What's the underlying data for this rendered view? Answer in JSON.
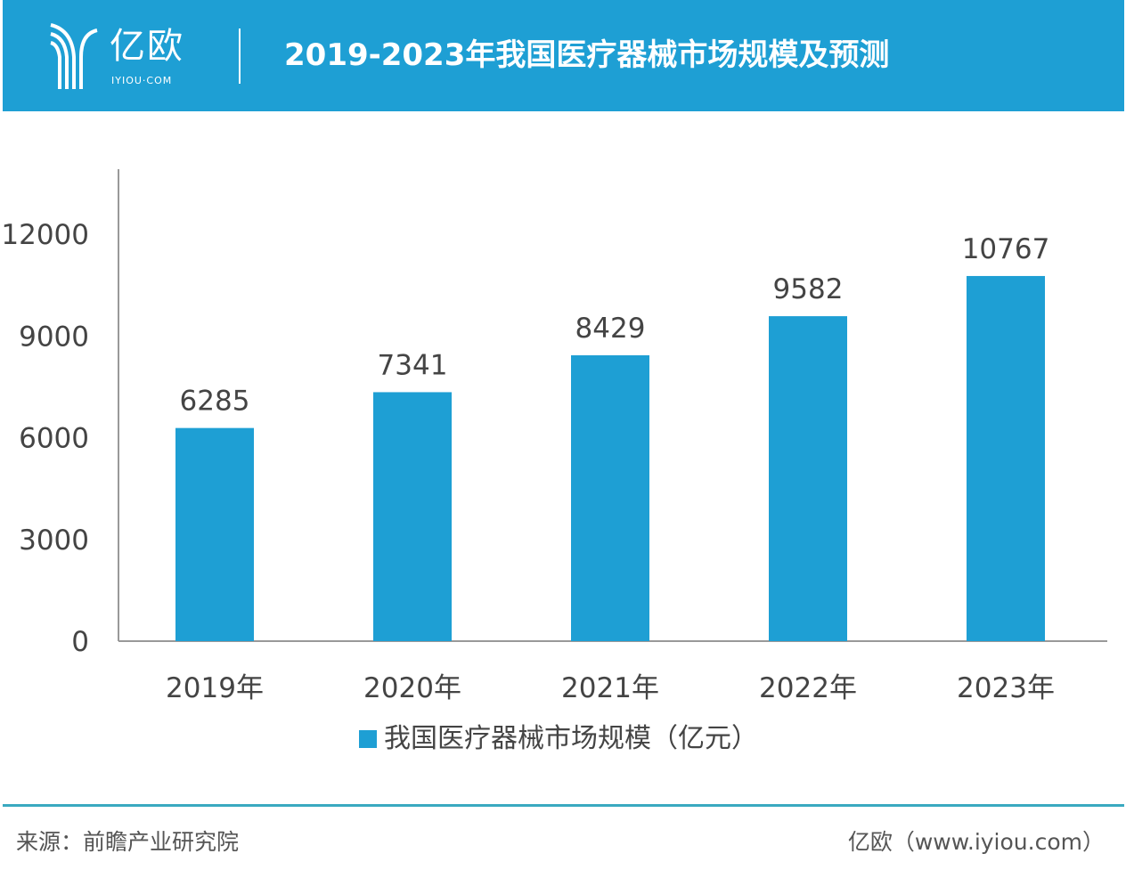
{
  "header": {
    "logo_cn": "亿欧",
    "logo_en": "IYIOU·COM",
    "title": "2019-2023年我国医疗器械市场规模及预测"
  },
  "chart_data": {
    "type": "bar",
    "title": "2019-2023年我国医疗器械市场规模及预测",
    "categories": [
      "2019年",
      "2020年",
      "2021年",
      "2022年",
      "2023年"
    ],
    "series": [
      {
        "name": "我国医疗器械市场规模（亿元）",
        "values": [
          6285,
          7341,
          8429,
          9582,
          10767
        ]
      }
    ],
    "data_labels": [
      "6285",
      "7341",
      "8429",
      "9582",
      "10767"
    ],
    "yticks": [
      "0",
      "3000",
      "6000",
      "9000",
      "12000"
    ],
    "ylim": [
      0,
      14000
    ],
    "grid": false,
    "legend": "bottom",
    "color": "#1e9fd4"
  },
  "legend": {
    "label": "我国医疗器械市场规模（亿元）"
  },
  "footer": {
    "source": "来源：前瞻产业研究院",
    "credit": "亿欧（www.iyiou.com）"
  }
}
